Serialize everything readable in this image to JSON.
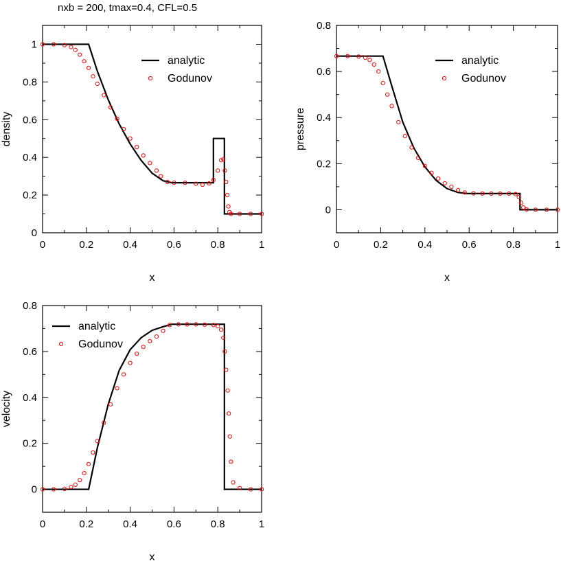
{
  "figure": {
    "title": "nxb = 200, tmax=0.4, CFL=0.5",
    "colors": {
      "analytic": "#000000",
      "godunov": "#ff0000",
      "frame": "#000000"
    }
  },
  "chart_data": [
    {
      "type": "line",
      "name": "density",
      "xlabel": "x",
      "ylabel": "density",
      "xlim": [
        0,
        1
      ],
      "ylim": [
        0,
        1.1
      ],
      "xticks": [
        "0",
        "0.2",
        "0.4",
        "0.6",
        "0.8",
        "1"
      ],
      "yticks": [
        "0",
        "0.2",
        "0.4",
        "0.6",
        "0.8",
        "1"
      ],
      "legend_position": "top-right",
      "grid": false,
      "series": [
        {
          "name": "analytic",
          "style": "line",
          "x": [
            0,
            0.2,
            0.2104,
            0.25,
            0.3,
            0.35,
            0.4,
            0.45,
            0.5,
            0.55,
            0.59,
            0.6,
            0.75,
            0.78,
            0.78,
            0.83,
            0.83,
            1
          ],
          "y": [
            1,
            1,
            1,
            0.857,
            0.705,
            0.577,
            0.471,
            0.384,
            0.316,
            0.276,
            0.2656,
            0.2656,
            0.2656,
            0.2656,
            0.5,
            0.5,
            0.1,
            0.1
          ]
        },
        {
          "name": "Godunov",
          "style": "markers",
          "x": [
            0,
            0.05,
            0.1,
            0.13,
            0.15,
            0.17,
            0.19,
            0.21,
            0.23,
            0.25,
            0.28,
            0.31,
            0.34,
            0.37,
            0.4,
            0.43,
            0.46,
            0.49,
            0.52,
            0.54,
            0.57,
            0.6,
            0.65,
            0.7,
            0.73,
            0.76,
            0.78,
            0.8,
            0.815,
            0.825,
            0.832,
            0.838,
            0.843,
            0.848,
            0.853,
            0.86,
            0.9,
            0.95,
            1.0
          ],
          "y": [
            1,
            1,
            0.995,
            0.985,
            0.97,
            0.945,
            0.91,
            0.875,
            0.83,
            0.79,
            0.73,
            0.665,
            0.605,
            0.55,
            0.5,
            0.455,
            0.41,
            0.37,
            0.33,
            0.3,
            0.27,
            0.2656,
            0.265,
            0.26,
            0.255,
            0.262,
            0.28,
            0.33,
            0.385,
            0.39,
            0.33,
            0.27,
            0.2,
            0.14,
            0.11,
            0.1,
            0.1,
            0.1,
            0.1
          ]
        }
      ]
    },
    {
      "type": "line",
      "name": "pressure",
      "xlabel": "x",
      "ylabel": "pressure",
      "xlim": [
        0,
        1
      ],
      "ylim": [
        -0.1,
        0.8
      ],
      "xticks": [
        "0",
        "0.2",
        "0.4",
        "0.6",
        "0.8",
        "1"
      ],
      "yticks": [
        "0",
        "0.2",
        "0.4",
        "0.6",
        "0.8"
      ],
      "legend_position": "top-right",
      "grid": false,
      "series": [
        {
          "name": "analytic",
          "style": "line",
          "x": [
            0,
            0.2,
            0.2104,
            0.25,
            0.3,
            0.35,
            0.4,
            0.45,
            0.5,
            0.55,
            0.59,
            0.6,
            0.83,
            0.83,
            1
          ],
          "y": [
            0.6667,
            0.6667,
            0.6667,
            0.538,
            0.38,
            0.268,
            0.186,
            0.128,
            0.092,
            0.075,
            0.0701,
            0.0701,
            0.0701,
            0.0,
            0.0
          ]
        },
        {
          "name": "Godunov",
          "style": "markers",
          "x": [
            0,
            0.05,
            0.1,
            0.13,
            0.15,
            0.17,
            0.19,
            0.21,
            0.23,
            0.25,
            0.28,
            0.31,
            0.34,
            0.37,
            0.4,
            0.43,
            0.46,
            0.49,
            0.52,
            0.55,
            0.58,
            0.62,
            0.66,
            0.7,
            0.74,
            0.78,
            0.81,
            0.825,
            0.835,
            0.845,
            0.86,
            0.9,
            0.95,
            1.0
          ],
          "y": [
            0.6667,
            0.6667,
            0.665,
            0.66,
            0.65,
            0.63,
            0.6,
            0.55,
            0.5,
            0.45,
            0.38,
            0.32,
            0.27,
            0.225,
            0.19,
            0.16,
            0.135,
            0.115,
            0.1,
            0.085,
            0.075,
            0.071,
            0.0705,
            0.0702,
            0.07,
            0.07,
            0.068,
            0.055,
            0.03,
            0.01,
            0.001,
            0.0,
            0.0,
            0.0
          ]
        }
      ]
    },
    {
      "type": "line",
      "name": "velocity",
      "xlabel": "x",
      "ylabel": "velocity",
      "xlim": [
        0,
        1
      ],
      "ylim": [
        -0.1,
        0.8
      ],
      "xticks": [
        "0",
        "0.2",
        "0.4",
        "0.6",
        "0.8",
        "1"
      ],
      "yticks": [
        "0",
        "0.2",
        "0.4",
        "0.6",
        "0.8"
      ],
      "legend_position": "top-left",
      "grid": false,
      "series": [
        {
          "name": "analytic",
          "style": "line",
          "x": [
            0,
            0.2104,
            0.25,
            0.3,
            0.35,
            0.4,
            0.45,
            0.5,
            0.55,
            0.59,
            0.83,
            0.83,
            1
          ],
          "y": [
            0,
            0,
            0.181,
            0.371,
            0.518,
            0.608,
            0.66,
            0.692,
            0.708,
            0.7186,
            0.7186,
            0,
            0
          ]
        },
        {
          "name": "Godunov",
          "style": "markers",
          "x": [
            0,
            0.05,
            0.1,
            0.13,
            0.15,
            0.17,
            0.19,
            0.21,
            0.23,
            0.25,
            0.28,
            0.31,
            0.34,
            0.37,
            0.4,
            0.43,
            0.46,
            0.49,
            0.52,
            0.55,
            0.58,
            0.62,
            0.66,
            0.7,
            0.74,
            0.78,
            0.8,
            0.815,
            0.825,
            0.832,
            0.838,
            0.845,
            0.85,
            0.855,
            0.86,
            0.87,
            0.9,
            0.95,
            1.0
          ],
          "y": [
            0,
            0,
            0.002,
            0.01,
            0.02,
            0.04,
            0.07,
            0.11,
            0.16,
            0.21,
            0.29,
            0.37,
            0.44,
            0.5,
            0.55,
            0.59,
            0.62,
            0.645,
            0.665,
            0.69,
            0.715,
            0.718,
            0.718,
            0.718,
            0.717,
            0.715,
            0.71,
            0.695,
            0.66,
            0.6,
            0.52,
            0.43,
            0.33,
            0.23,
            0.12,
            0.03,
            0.005,
            0.0,
            0.0
          ]
        }
      ]
    }
  ]
}
